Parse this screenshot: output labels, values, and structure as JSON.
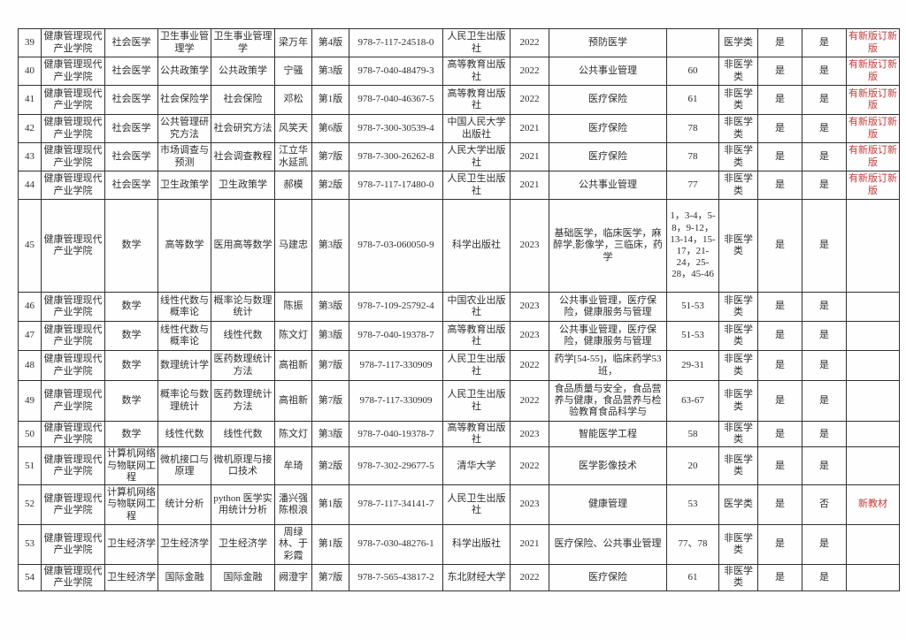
{
  "colors": {
    "note_red": "#c03b3b"
  },
  "table": {
    "rows": [
      {
        "no": "39",
        "college": "健康管理现代产业学院",
        "subject": "社会医学",
        "course": "卫生事业管理学",
        "textbook": "卫生事业管理学",
        "author": "梁万年",
        "edition": "第4版",
        "isbn": "978-7-117-24518-0",
        "publisher": "人民卫生出版社",
        "year": "2022",
        "majors": "预防医学",
        "classes": "",
        "category": "医学类",
        "selected": "是",
        "confirmed": "是",
        "note": "有新版订新版",
        "note_red": true
      },
      {
        "no": "40",
        "college": "健康管理现代产业学院",
        "subject": "社会医学",
        "course": "公共政策学",
        "textbook": "公共政策学",
        "author": "宁骚",
        "edition": "第3版",
        "isbn": "978-7-040-48479-3",
        "publisher": "高等教育出版社",
        "year": "2022",
        "majors": "公共事业管理",
        "classes": "60",
        "category": "非医学类",
        "selected": "是",
        "confirmed": "是",
        "note": "有新版订新版",
        "note_red": true
      },
      {
        "no": "41",
        "college": "健康管理现代产业学院",
        "subject": "社会医学",
        "course": "社会保险学",
        "textbook": "社会保险",
        "author": "邓松",
        "edition": "第1版",
        "isbn": "978-7-040-46367-5",
        "publisher": "高等教育出版社",
        "year": "2022",
        "majors": "医疗保险",
        "classes": "61",
        "category": "非医学类",
        "selected": "是",
        "confirmed": "是",
        "note": "有新版订新版",
        "note_red": true
      },
      {
        "no": "42",
        "college": "健康管理现代产业学院",
        "subject": "社会医学",
        "course": "公共管理研究方法",
        "textbook": "社会研究方法",
        "author": "风笑天",
        "edition": "第6版",
        "isbn": "978-7-300-30539-4",
        "publisher": "中国人民大学出版社",
        "year": "2021",
        "majors": "医疗保险",
        "classes": "78",
        "category": "非医学类",
        "selected": "是",
        "confirmed": "是",
        "note": "有新版订新版",
        "note_red": true
      },
      {
        "no": "43",
        "college": "健康管理现代产业学院",
        "subject": "社会医学",
        "course": "市场调查与预测",
        "textbook": "社会调查教程",
        "author": "江立华水延凯",
        "edition": "第7版",
        "isbn": "978-7-300-26262-8",
        "publisher": "人民大学出版社",
        "year": "2021",
        "majors": "医疗保险",
        "classes": "78",
        "category": "非医学类",
        "selected": "是",
        "confirmed": "是",
        "note": "有新版订新版",
        "note_red": true
      },
      {
        "no": "44",
        "college": "健康管理现代产业学院",
        "subject": "社会医学",
        "course": "卫生政策学",
        "textbook": "卫生政策学",
        "author": "郝模",
        "edition": "第2版",
        "isbn": "978-7-117-17480-0",
        "publisher": "人民卫生出版社",
        "year": "2021",
        "majors": "公共事业管理",
        "classes": "77",
        "category": "非医学类",
        "selected": "是",
        "confirmed": "是",
        "note": "有新版订新版",
        "note_red": true
      },
      {
        "no": "45",
        "college": "健康管理现代产业学院",
        "subject": "数学",
        "course": "高等数学",
        "textbook": "医用高等数学",
        "author": "马建忠",
        "edition": "第3版",
        "isbn": "978-7-03-060050-9",
        "publisher": "科学出版社",
        "year": "2023",
        "majors": "基础医学，临床医学，麻醉学,影像学，三临床，药学",
        "classes": "1，3-4，5-8，9-12，13-14，15-17，21-24，25-28，45-46",
        "category": "非医学类",
        "selected": "是",
        "confirmed": "是",
        "note": "",
        "note_red": false
      },
      {
        "no": "46",
        "college": "健康管理现代产业学院",
        "subject": "数学",
        "course": "线性代数与概率论",
        "textbook": "概率论与数理统计",
        "author": "陈振",
        "edition": "第3版",
        "isbn": "978-7-109-25792-4",
        "publisher": "中国农业出版社",
        "year": "2023",
        "majors": "公共事业管理，医疗保险，健康服务与管理",
        "classes": "51-53",
        "category": "非医学类",
        "selected": "是",
        "confirmed": "是",
        "note": "",
        "note_red": false
      },
      {
        "no": "47",
        "college": "健康管理现代产业学院",
        "subject": "数学",
        "course": "线性代数与概率论",
        "textbook": "线性代数",
        "author": "陈文灯",
        "edition": "第3版",
        "isbn": "978-7-040-19378-7",
        "publisher": "高等教育出版社",
        "year": "2023",
        "majors": "公共事业管理，医疗保险，健康服务与管理",
        "classes": "51-53",
        "category": "非医学类",
        "selected": "是",
        "confirmed": "是",
        "note": "",
        "note_red": false
      },
      {
        "no": "48",
        "college": "健康管理现代产业学院",
        "subject": "数学",
        "course": "数理统计学",
        "textbook": "医药数理统计方法",
        "author": "高祖新",
        "edition": "第7版",
        "isbn": "978-7-117-330909",
        "publisher": "人民卫生出版社",
        "year": "2022",
        "majors": "药学[54-55]，临床药学53班，",
        "classes": "29-31",
        "category": "非医学类",
        "selected": "是",
        "confirmed": "是",
        "note": "",
        "note_red": false
      },
      {
        "no": "49",
        "college": "健康管理现代产业学院",
        "subject": "数学",
        "course": "概率论与数理统计",
        "textbook": "医药数理统计方法",
        "author": "高祖新",
        "edition": "第7版",
        "isbn": "978-7-117-330909",
        "publisher": "人民卫生出版社",
        "year": "2022",
        "majors": "食品质量与安全，食品营养与健康，食品营养与检验教育食品科学与",
        "classes": "63-67",
        "category": "非医学类",
        "selected": "是",
        "confirmed": "是",
        "note": "",
        "note_red": false
      },
      {
        "no": "50",
        "college": "健康管理现代产业学院",
        "subject": "数学",
        "course": "线性代数",
        "textbook": "线性代数",
        "author": "陈文灯",
        "edition": "第3版",
        "isbn": "978-7-040-19378-7",
        "publisher": "高等教育出版社",
        "year": "2023",
        "majors": "智能医学工程",
        "classes": "58",
        "category": "非医学类",
        "selected": "是",
        "confirmed": "是",
        "note": "",
        "note_red": false
      },
      {
        "no": "51",
        "college": "健康管理现代产业学院",
        "subject": "计算机网络与物联网工程",
        "course": "微机接口与原理",
        "textbook": "微机原理与接口技术",
        "author": "牟琦",
        "edition": "第2版",
        "isbn": "978-7-302-29677-5",
        "publisher": "清华大学",
        "year": "2022",
        "majors": "医学影像技术",
        "classes": "20",
        "category": "非医学类",
        "selected": "是",
        "confirmed": "是",
        "note": "",
        "note_red": false
      },
      {
        "no": "52",
        "college": "健康管理现代产业学院",
        "subject": "计算机网络与物联网工程",
        "course": "统计分析",
        "textbook": "python 医学实用统计分析",
        "author": "潘兴强陈根浪",
        "edition": "第1版",
        "isbn": "978-7-117-34141-7",
        "publisher": "人民卫生出版社",
        "year": "2023",
        "majors": "健康管理",
        "classes": "53",
        "category": "医学类",
        "selected": "是",
        "confirmed": "否",
        "note": "新教材",
        "note_red": true
      },
      {
        "no": "53",
        "college": "健康管理现代产业学院",
        "subject": "卫生经济学",
        "course": "卫生经济学",
        "textbook": "卫生经济学",
        "author": "周绿林、于彩霞",
        "edition": "第1版",
        "isbn": "978-7-030-48276-1",
        "publisher": "科学出版社",
        "year": "2021",
        "majors": "医疗保险、公共事业管理",
        "classes": "77、78",
        "category": "非医学类",
        "selected": "是",
        "confirmed": "是",
        "note": "",
        "note_red": false
      },
      {
        "no": "54",
        "college": "健康管理现代产业学院",
        "subject": "卫生经济学",
        "course": "国际金融",
        "textbook": "国际金融",
        "author": "阙澄宇",
        "edition": "第7版",
        "isbn": "978-7-565-43817-2",
        "publisher": "东北财经大学",
        "year": "2022",
        "majors": "医疗保险",
        "classes": "61",
        "category": "非医学类",
        "selected": "是",
        "confirmed": "是",
        "note": "",
        "note_red": false
      }
    ]
  }
}
